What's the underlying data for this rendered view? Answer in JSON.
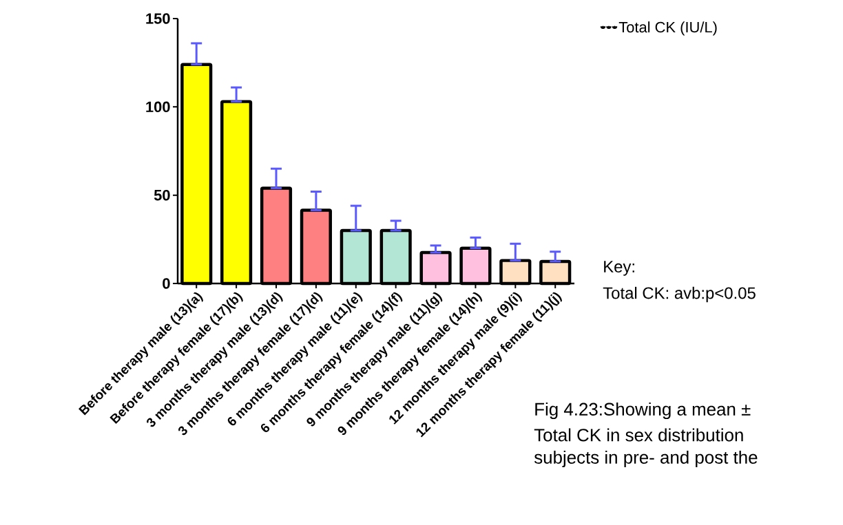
{
  "chart_data": {
    "type": "bar",
    "categories": [
      "Before therapy male (13)(a)",
      "Before therapy female (17)(b)",
      "3 months therapy male (13)(d)",
      "3 months therapy female (17)(d)",
      "6 months therapy male (11)(e)",
      "6 months therapy female (14)(f)",
      "9 months therapy male (11)(g)",
      "9 months therapy female (14)(h)",
      "12 months therapy male (9)(i)",
      "12 months therapy female (11)(j)"
    ],
    "series": [
      {
        "name": "Total CK (IU/L)",
        "values": [
          124,
          103,
          54,
          41.5,
          30,
          30,
          17.5,
          20,
          13,
          12.5
        ],
        "colors": [
          "#ffff00",
          "#ffff00",
          "#ff8080",
          "#ff8080",
          "#b3e6d4",
          "#b3e6d4",
          "#ffc0e0",
          "#ffc0e0",
          "#ffe0c0",
          "#ffe0c0"
        ],
        "errors": [
          [
            124,
            136
          ],
          [
            103,
            111
          ],
          [
            54,
            65
          ],
          [
            41.5,
            52
          ],
          [
            30,
            44
          ],
          [
            30,
            35.5
          ],
          [
            17.5,
            21.5
          ],
          [
            20,
            26
          ],
          [
            13,
            22.5
          ],
          [
            12.5,
            18
          ]
        ]
      }
    ],
    "ylim": [
      0,
      150
    ],
    "yticks": [
      0,
      50,
      100,
      150
    ],
    "legend": "top right",
    "annotations": [
      "Key:",
      "Total CK: avb:p<0.05",
      "Fig 4.23:Showing a mean ±",
      "Total CK  in sex distribution",
      "subjects in pre- and post the"
    ]
  }
}
